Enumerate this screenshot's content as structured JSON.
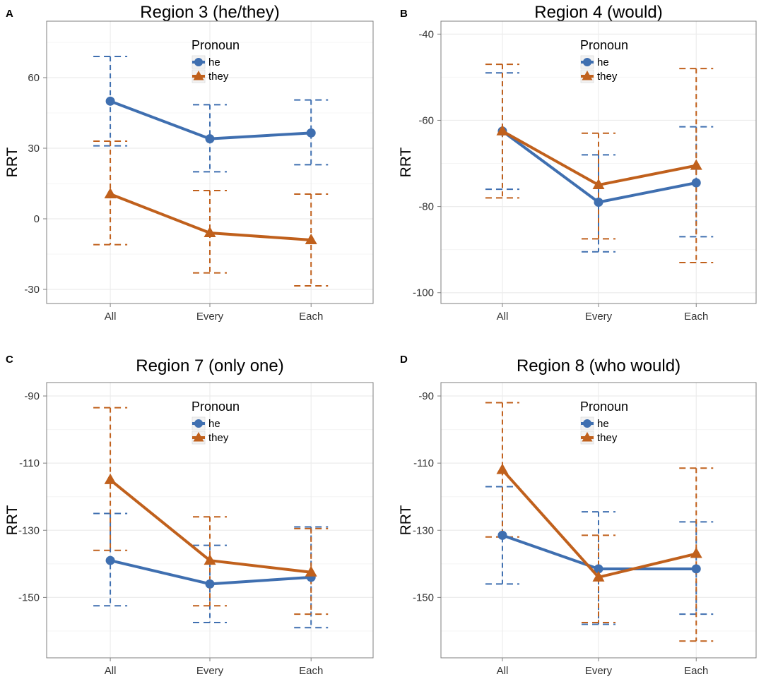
{
  "figure": {
    "background": "#ffffff"
  },
  "colors": {
    "he": "#3f6fb0",
    "they": "#c0601c",
    "grid": "#ececec",
    "frame": "#7f7f7f"
  },
  "chart_data": [
    {
      "id": "A",
      "letter": "A",
      "type": "line",
      "title": "Region 3 (he/they)",
      "xlabel": "",
      "ylabel": "RRT",
      "categories": [
        "All",
        "Every",
        "Each"
      ],
      "ylim": [
        -36,
        84
      ],
      "yticks": [
        -30,
        0,
        30,
        60
      ],
      "ytick_labels": [
        "-30",
        "0",
        "30",
        "60"
      ],
      "legend": {
        "title": "Pronoun",
        "position": "top-center",
        "items": [
          "he",
          "they"
        ]
      },
      "series": [
        {
          "name": "he",
          "marker": "circle",
          "values": [
            50,
            34,
            36.5
          ],
          "lower": [
            31,
            20,
            23
          ],
          "upper": [
            69,
            48.5,
            50.5
          ]
        },
        {
          "name": "they",
          "marker": "triangle",
          "values": [
            10.5,
            -6,
            -9
          ],
          "lower": [
            -11,
            -23,
            -28.5
          ],
          "upper": [
            33,
            12,
            10.5
          ]
        }
      ]
    },
    {
      "id": "B",
      "letter": "B",
      "type": "line",
      "title": "Region 4 (would)",
      "xlabel": "",
      "ylabel": "RRT",
      "categories": [
        "All",
        "Every",
        "Each"
      ],
      "ylim": [
        -102.5,
        -37
      ],
      "yticks": [
        -100,
        -80,
        -60,
        -40
      ],
      "ytick_labels": [
        "-100",
        "-80",
        "-60",
        "-40"
      ],
      "legend": {
        "title": "Pronoun",
        "position": "top-center",
        "items": [
          "he",
          "they"
        ]
      },
      "series": [
        {
          "name": "he",
          "marker": "circle",
          "values": [
            -62.5,
            -79,
            -74.5
          ],
          "lower": [
            -76,
            -90.5,
            -87
          ],
          "upper": [
            -49,
            -68,
            -61.5
          ]
        },
        {
          "name": "they",
          "marker": "triangle",
          "values": [
            -62.5,
            -75,
            -70.5
          ],
          "lower": [
            -78,
            -87.5,
            -93
          ],
          "upper": [
            -47,
            -63,
            -48
          ]
        }
      ]
    },
    {
      "id": "C",
      "letter": "C",
      "type": "line",
      "title": "Region 7 (only one)",
      "xlabel": "",
      "ylabel": "RRT",
      "categories": [
        "All",
        "Every",
        "Each"
      ],
      "ylim": [
        -168,
        -86
      ],
      "yticks": [
        -150,
        -130,
        -110,
        -90
      ],
      "ytick_labels": [
        "-150",
        "-130",
        "-110",
        "-90"
      ],
      "legend": {
        "title": "Pronoun",
        "position": "top-center",
        "items": [
          "he",
          "they"
        ]
      },
      "series": [
        {
          "name": "he",
          "marker": "circle",
          "values": [
            -139,
            -146,
            -144
          ],
          "lower": [
            -152.5,
            -157.5,
            -159
          ],
          "upper": [
            -125,
            -134.5,
            -129
          ]
        },
        {
          "name": "they",
          "marker": "triangle",
          "values": [
            -115,
            -139,
            -142.5
          ],
          "lower": [
            -136,
            -152.5,
            -155
          ],
          "upper": [
            -93.5,
            -126,
            -129.5
          ]
        }
      ]
    },
    {
      "id": "D",
      "letter": "D",
      "type": "line",
      "title": "Region 8 (who would)",
      "xlabel": "",
      "ylabel": "RRT",
      "categories": [
        "All",
        "Every",
        "Each"
      ],
      "ylim": [
        -168,
        -86
      ],
      "yticks": [
        -150,
        -130,
        -110,
        -90
      ],
      "ytick_labels": [
        "-150",
        "-130",
        "-110",
        "-90"
      ],
      "legend": {
        "title": "Pronoun",
        "position": "top-center",
        "items": [
          "he",
          "they"
        ]
      },
      "series": [
        {
          "name": "he",
          "marker": "circle",
          "values": [
            -131.5,
            -141.5,
            -141.5
          ],
          "lower": [
            -146,
            -158,
            -155
          ],
          "upper": [
            -117,
            -124.5,
            -127.5
          ]
        },
        {
          "name": "they",
          "marker": "triangle",
          "values": [
            -112,
            -144,
            -137
          ],
          "lower": [
            -132,
            -157.5,
            -163
          ],
          "upper": [
            -92,
            -131.5,
            -111.5
          ]
        }
      ]
    }
  ]
}
